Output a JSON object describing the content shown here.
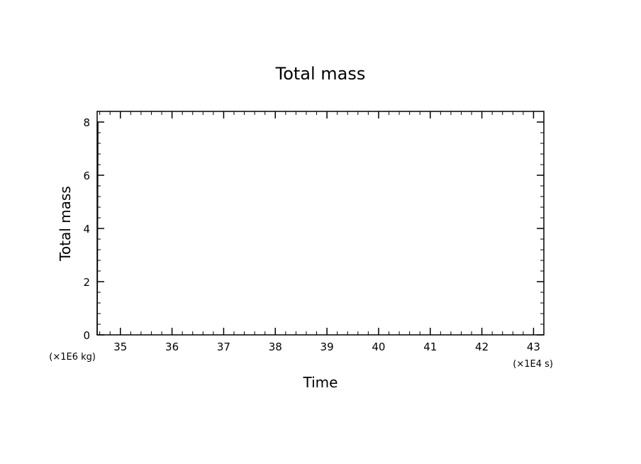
{
  "chart_data": {
    "type": "line",
    "title": "Total mass",
    "xlabel": "Time",
    "ylabel": "Total mass",
    "x_unit": "(×1E4 s)",
    "y_unit": "(×1E6 kg)",
    "xlim": [
      34.55,
      43.2
    ],
    "ylim": [
      0,
      8.4
    ],
    "x_ticks": [
      35,
      36,
      37,
      38,
      39,
      40,
      41,
      42,
      43
    ],
    "y_ticks": [
      0,
      2,
      4,
      6,
      8
    ],
    "grid": false,
    "series": [
      {
        "x": [
          34.55,
          34.555,
          34.56,
          34.563,
          34.565
        ],
        "y": [
          0,
          2.0,
          5.0,
          6.8,
          8.0
        ]
      }
    ],
    "colors": {
      "frame": "#000000",
      "series": "#000000",
      "background": "#ffffff"
    }
  }
}
